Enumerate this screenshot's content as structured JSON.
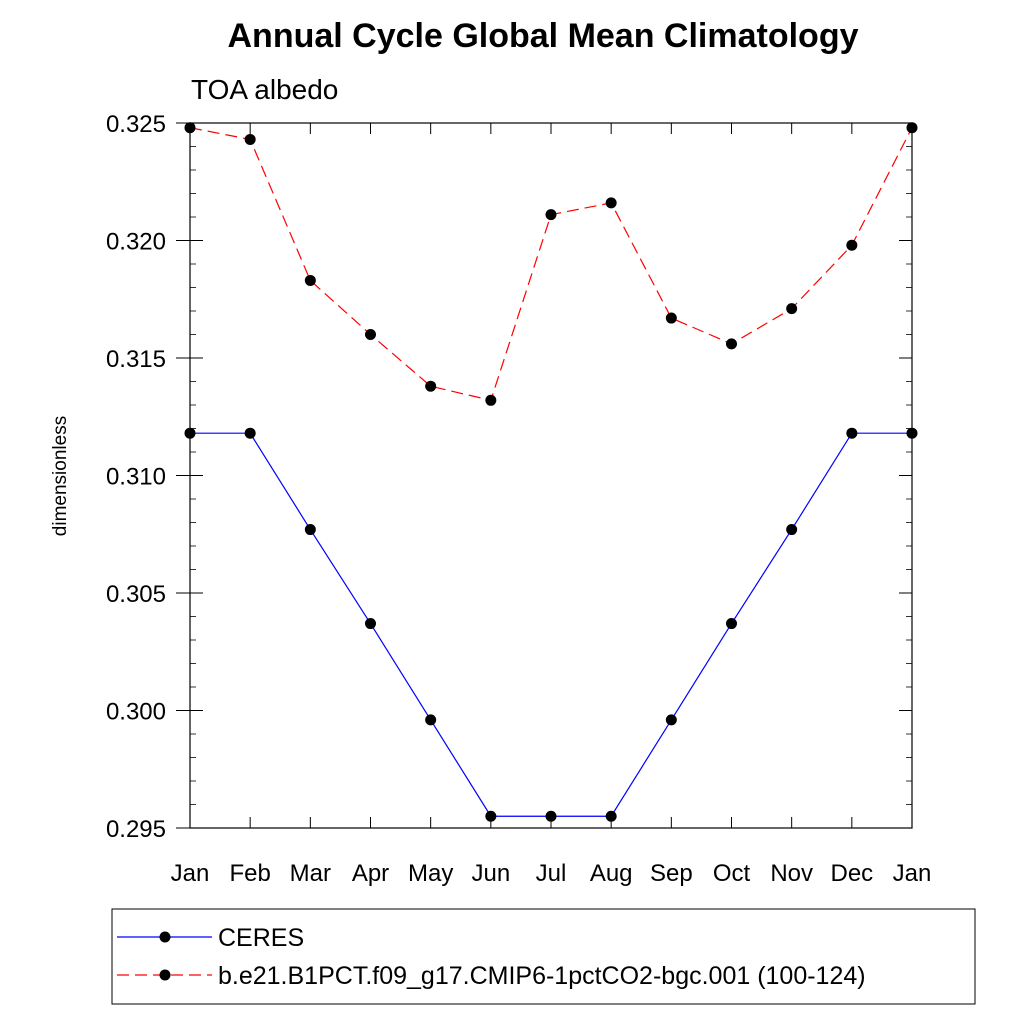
{
  "chart_data": {
    "type": "line",
    "title": "Annual Cycle Global Mean Climatology",
    "subtitle": "TOA albedo",
    "ylabel": "dimensionless",
    "xlabel": "",
    "categories": [
      "Jan",
      "Feb",
      "Mar",
      "Apr",
      "May",
      "Jun",
      "Jul",
      "Aug",
      "Sep",
      "Oct",
      "Nov",
      "Dec",
      "Jan"
    ],
    "ylim": [
      0.295,
      0.325
    ],
    "yticks": [
      0.325,
      0.32,
      0.315,
      0.31,
      0.305,
      0.3,
      0.295
    ],
    "ytick_labels": [
      "0.325",
      "0.320",
      "0.315",
      "0.310",
      "0.305",
      "0.300",
      "0.295"
    ],
    "legend_position": "bottom",
    "series": [
      {
        "name": "CERES",
        "color": "#0000ff",
        "line_style": "solid",
        "marker": "filled-circle",
        "values": [
          0.3118,
          0.3118,
          0.3077,
          0.3037,
          0.2996,
          0.2955,
          0.2955,
          0.2955,
          0.2996,
          0.3037,
          0.3077,
          0.3118,
          0.3118
        ]
      },
      {
        "name": "b.e21.B1PCT.f09_g17.CMIP6-1pctCO2-bgc.001 (100-124)",
        "color": "#ff0000",
        "line_style": "dashed",
        "marker": "filled-circle",
        "values": [
          0.3248,
          0.3243,
          0.3183,
          0.316,
          0.3138,
          0.3132,
          0.3211,
          0.3216,
          0.3167,
          0.3156,
          0.3171,
          0.3198,
          0.3248
        ]
      }
    ]
  }
}
